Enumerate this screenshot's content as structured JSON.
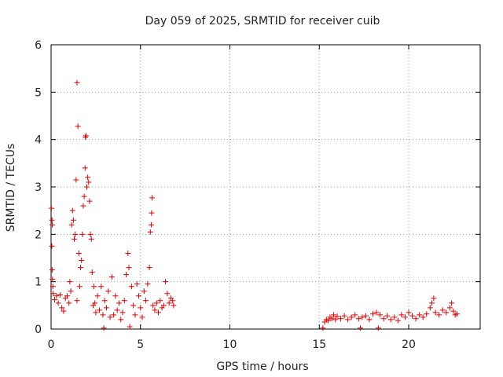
{
  "chart_data": {
    "type": "scatter",
    "title": "Day 059 of 2025, SRMTID for receiver cuib",
    "xlabel": "GPS time / hours",
    "ylabel": "SRMTID / TECUs",
    "xlim": [
      0,
      24
    ],
    "ylim": [
      0,
      6
    ],
    "xticks": [
      0,
      5,
      10,
      15,
      20
    ],
    "yticks": [
      0,
      1,
      2,
      3,
      4,
      5,
      6
    ],
    "grid": true,
    "marker": "plus",
    "color": "#e00000",
    "series": [
      {
        "name": "SRMTID",
        "points": [
          [
            0.02,
            2.55
          ],
          [
            0.05,
            2.3
          ],
          [
            0.07,
            2.2
          ],
          [
            0.04,
            1.75
          ],
          [
            0.06,
            1.25
          ],
          [
            0.08,
            1.05
          ],
          [
            0.1,
            0.9
          ],
          [
            0.12,
            0.75
          ],
          [
            0.2,
            0.62
          ],
          [
            0.3,
            0.7
          ],
          [
            0.4,
            0.55
          ],
          [
            0.5,
            0.72
          ],
          [
            0.6,
            0.45
          ],
          [
            0.7,
            0.38
          ],
          [
            0.8,
            0.65
          ],
          [
            0.9,
            0.7
          ],
          [
            1.0,
            0.55
          ],
          [
            1.05,
            1.0
          ],
          [
            1.1,
            0.8
          ],
          [
            1.15,
            2.2
          ],
          [
            1.2,
            2.5
          ],
          [
            1.25,
            2.3
          ],
          [
            1.3,
            1.9
          ],
          [
            1.35,
            2.0
          ],
          [
            1.4,
            3.15
          ],
          [
            1.45,
            0.6
          ],
          [
            1.5,
            4.28
          ],
          [
            1.45,
            5.2
          ],
          [
            1.55,
            1.6
          ],
          [
            1.6,
            0.9
          ],
          [
            1.65,
            1.3
          ],
          [
            1.7,
            1.45
          ],
          [
            1.75,
            2.0
          ],
          [
            1.8,
            2.6
          ],
          [
            1.85,
            2.8
          ],
          [
            1.9,
            3.4
          ],
          [
            1.92,
            4.05
          ],
          [
            1.95,
            4.08
          ],
          [
            2.0,
            3.0
          ],
          [
            2.05,
            3.2
          ],
          [
            2.1,
            3.1
          ],
          [
            2.15,
            2.7
          ],
          [
            2.2,
            2.0
          ],
          [
            2.25,
            1.9
          ],
          [
            2.3,
            1.2
          ],
          [
            2.35,
            0.5
          ],
          [
            2.4,
            0.9
          ],
          [
            2.45,
            0.55
          ],
          [
            2.5,
            0.35
          ],
          [
            2.6,
            0.7
          ],
          [
            2.7,
            0.4
          ],
          [
            2.8,
            0.9
          ],
          [
            2.9,
            0.3
          ],
          [
            2.95,
            0.02
          ],
          [
            3.0,
            0.6
          ],
          [
            3.1,
            0.45
          ],
          [
            3.2,
            0.8
          ],
          [
            3.3,
            0.25
          ],
          [
            3.4,
            1.1
          ],
          [
            3.5,
            0.3
          ],
          [
            3.6,
            0.7
          ],
          [
            3.7,
            0.4
          ],
          [
            3.8,
            0.55
          ],
          [
            3.9,
            0.2
          ],
          [
            4.0,
            0.35
          ],
          [
            4.1,
            0.6
          ],
          [
            4.2,
            1.15
          ],
          [
            4.3,
            1.6
          ],
          [
            4.35,
            1.3
          ],
          [
            4.4,
            0.05
          ],
          [
            4.5,
            0.9
          ],
          [
            4.6,
            0.5
          ],
          [
            4.7,
            0.3
          ],
          [
            4.8,
            0.95
          ],
          [
            4.9,
            0.7
          ],
          [
            5.0,
            0.45
          ],
          [
            5.1,
            0.25
          ],
          [
            5.2,
            0.8
          ],
          [
            5.3,
            0.6
          ],
          [
            5.4,
            0.95
          ],
          [
            5.5,
            1.3
          ],
          [
            5.55,
            2.05
          ],
          [
            5.6,
            2.2
          ],
          [
            5.62,
            2.45
          ],
          [
            5.65,
            2.77
          ],
          [
            5.7,
            0.5
          ],
          [
            5.8,
            0.4
          ],
          [
            5.9,
            0.55
          ],
          [
            6.0,
            0.35
          ],
          [
            6.1,
            0.6
          ],
          [
            6.2,
            0.45
          ],
          [
            6.3,
            0.5
          ],
          [
            6.4,
            1.0
          ],
          [
            6.5,
            0.75
          ],
          [
            6.6,
            0.55
          ],
          [
            6.7,
            0.65
          ],
          [
            6.8,
            0.6
          ],
          [
            6.85,
            0.5
          ],
          [
            15.2,
            0.02
          ],
          [
            15.3,
            0.15
          ],
          [
            15.4,
            0.2
          ],
          [
            15.5,
            0.18
          ],
          [
            15.6,
            0.25
          ],
          [
            15.7,
            0.22
          ],
          [
            15.8,
            0.3
          ],
          [
            15.9,
            0.2
          ],
          [
            16.0,
            0.27
          ],
          [
            16.2,
            0.22
          ],
          [
            16.4,
            0.28
          ],
          [
            16.6,
            0.2
          ],
          [
            16.8,
            0.25
          ],
          [
            17.0,
            0.3
          ],
          [
            17.2,
            0.22
          ],
          [
            17.3,
            0.02
          ],
          [
            17.4,
            0.25
          ],
          [
            17.6,
            0.28
          ],
          [
            17.8,
            0.2
          ],
          [
            18.0,
            0.32
          ],
          [
            18.2,
            0.35
          ],
          [
            18.3,
            0.02
          ],
          [
            18.4,
            0.3
          ],
          [
            18.6,
            0.22
          ],
          [
            18.8,
            0.28
          ],
          [
            19.0,
            0.2
          ],
          [
            19.2,
            0.25
          ],
          [
            19.4,
            0.18
          ],
          [
            19.6,
            0.3
          ],
          [
            19.8,
            0.25
          ],
          [
            20.0,
            0.35
          ],
          [
            20.2,
            0.28
          ],
          [
            20.4,
            0.22
          ],
          [
            20.6,
            0.3
          ],
          [
            20.8,
            0.25
          ],
          [
            21.0,
            0.32
          ],
          [
            21.2,
            0.45
          ],
          [
            21.3,
            0.55
          ],
          [
            21.4,
            0.65
          ],
          [
            21.5,
            0.35
          ],
          [
            21.7,
            0.3
          ],
          [
            21.9,
            0.4
          ],
          [
            22.1,
            0.35
          ],
          [
            22.3,
            0.45
          ],
          [
            22.4,
            0.55
          ],
          [
            22.5,
            0.38
          ],
          [
            22.6,
            0.3
          ],
          [
            22.7,
            0.32
          ]
        ]
      }
    ]
  }
}
